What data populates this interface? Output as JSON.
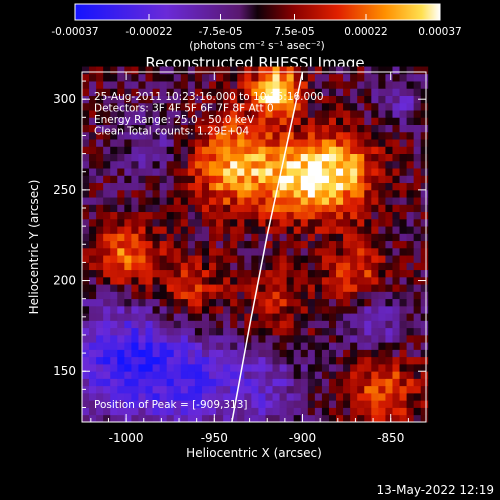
{
  "chart_data": {
    "type": "heatmap",
    "title": "Reconstructed RHESSI Image",
    "xlabel": "Heliocentric X (arcsec)",
    "ylabel": "Heliocentric Y (arcsec)",
    "xlim": [
      -1025,
      -830
    ],
    "ylim": [
      122,
      315
    ],
    "x_ticks": [
      -1000,
      -950,
      -900,
      -850
    ],
    "y_ticks": [
      150,
      200,
      250,
      300
    ],
    "colorbar": {
      "ticks": [
        {
          "value": -0.00037,
          "label": "-0.00037"
        },
        {
          "value": -0.00022,
          "label": "-0.00022"
        },
        {
          "value": -7.5e-05,
          "label": "-7.5e-05"
        },
        {
          "value": 7.5e-05,
          "label": "7.5e-05"
        },
        {
          "value": 0.00022,
          "label": "0.00022"
        },
        {
          "value": 0.00037,
          "label": "0.00037"
        }
      ],
      "range": [
        -0.00037,
        0.00037
      ],
      "unit_label": "(photons cm⁻² s⁻¹ asec⁻²)"
    },
    "annotations": [
      "25-Aug-2011 10:23:16.000 to 10:25:16.000",
      "Detectors: 3F 4F 5F 6F 7F 8F  Att 0",
      "Energy Range: 25.0 - 50.0 keV",
      "Clean      Total counts: 1.29E+04"
    ],
    "peak_label": "Position of Peak = [-909,313]",
    "peak_position": [
      -909,
      313
    ],
    "limb_curve": [
      [
        -940,
        122
      ],
      [
        -930,
        175
      ],
      [
        -920,
        225
      ],
      [
        -910,
        270
      ],
      [
        -900,
        315
      ]
    ],
    "hot_regions": [
      {
        "x": -940,
        "y": 265,
        "sigma": 18,
        "amp": 0.00028
      },
      {
        "x": -915,
        "y": 305,
        "sigma": 10,
        "amp": 0.00037
      },
      {
        "x": -880,
        "y": 260,
        "sigma": 16,
        "amp": 0.0003
      },
      {
        "x": -905,
        "y": 255,
        "sigma": 15,
        "amp": 0.00022
      },
      {
        "x": -1000,
        "y": 215,
        "sigma": 13,
        "amp": 0.00022
      },
      {
        "x": -965,
        "y": 195,
        "sigma": 14,
        "amp": 0.00015
      },
      {
        "x": -870,
        "y": 205,
        "sigma": 12,
        "amp": 0.00018
      },
      {
        "x": -855,
        "y": 140,
        "sigma": 14,
        "amp": 0.0002
      },
      {
        "x": -915,
        "y": 190,
        "sigma": 14,
        "amp": 0.00012
      }
    ],
    "cold_regions": [
      {
        "x": -1000,
        "y": 155,
        "sigma": 22,
        "amp": -0.0003
      },
      {
        "x": -960,
        "y": 145,
        "sigma": 18,
        "amp": -0.0002
      },
      {
        "x": -985,
        "y": 275,
        "sigma": 14,
        "amp": -0.0001
      },
      {
        "x": -920,
        "y": 140,
        "sigma": 16,
        "amp": -0.00015
      },
      {
        "x": -860,
        "y": 175,
        "sigma": 12,
        "amp": -0.00015
      },
      {
        "x": -845,
        "y": 300,
        "sigma": 10,
        "amp": -0.00012
      }
    ],
    "noise_amplitude": 8e-05,
    "pixel_size_arcsec": 4
  },
  "timestamp": "13-May-2022 12:19"
}
